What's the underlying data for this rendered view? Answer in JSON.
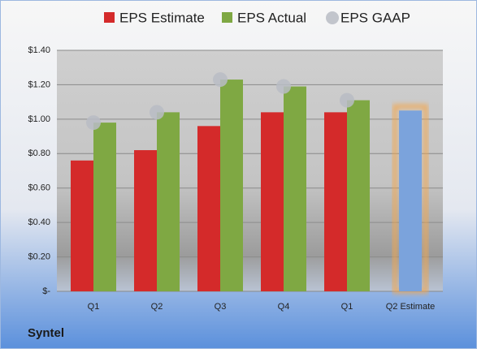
{
  "chart_data": {
    "type": "bar",
    "title": "Syntel",
    "categories": [
      "Q1",
      "Q2",
      "Q3",
      "Q4",
      "Q1",
      "Q2 Estimate"
    ],
    "series": [
      {
        "name": "EPS Estimate",
        "color": "#d42a2a",
        "values": [
          0.76,
          0.82,
          0.96,
          1.04,
          1.04,
          null
        ]
      },
      {
        "name": "EPS Actual",
        "color": "#7fa843",
        "values": [
          0.98,
          1.04,
          1.23,
          1.19,
          1.11,
          null
        ]
      },
      {
        "name": "EPS GAAP",
        "color": "#b8bcc4",
        "values": [
          0.98,
          1.04,
          1.23,
          1.19,
          1.11,
          null
        ]
      }
    ],
    "highlight": {
      "value": 1.05,
      "color": "#7ba3dc",
      "glow": "#f5a64a"
    },
    "ylim": [
      0,
      1.4
    ],
    "yticks": [
      {
        "value": 0,
        "label": "$-"
      },
      {
        "value": 0.2,
        "label": "$0.20"
      },
      {
        "value": 0.4,
        "label": "$0.40"
      },
      {
        "value": 0.6,
        "label": "$0.60"
      },
      {
        "value": 0.8,
        "label": "$0.80"
      },
      {
        "value": 1.0,
        "label": "$1.00"
      },
      {
        "value": 1.2,
        "label": "$1.20"
      },
      {
        "value": 1.4,
        "label": "$1.40"
      }
    ],
    "grid": true
  }
}
